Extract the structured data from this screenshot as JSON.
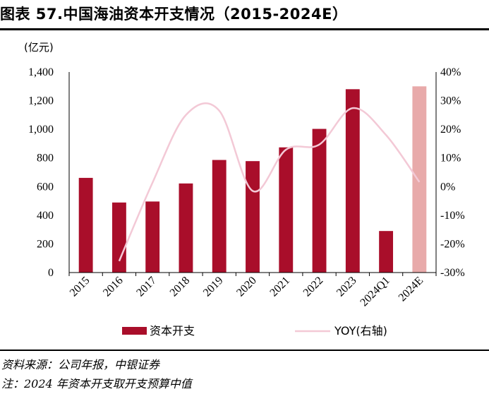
{
  "title": "图表 57.中国海油资本开支情况（2015-2024E）",
  "source_note": "资料来源：公司年报，中银证券",
  "footnote": "注：2024 年资本开支取开支预算中值",
  "colors": {
    "bar": "#a90e2a",
    "bar_forecast": "#e8aaaa",
    "line": "#f3c9d6",
    "axis": "#000000"
  },
  "chart_data": {
    "type": "bar",
    "title": "中国海油资本开支情况（2015-2024E）",
    "unit_label": "(亿元)",
    "categories": [
      "2015",
      "2016",
      "2017",
      "2018",
      "2019",
      "2020",
      "2021",
      "2022",
      "2023",
      "2024Q1",
      "2024E"
    ],
    "series": [
      {
        "name": "资本开支",
        "type": "bar",
        "axis": "left",
        "values": [
          661,
          489,
          496,
          622,
          786,
          778,
          874,
          1003,
          1280,
          290,
          1300
        ],
        "forecast_categories": [
          "2024E"
        ]
      },
      {
        "name": "YOY(右轴)",
        "type": "line",
        "axis": "right",
        "values": [
          null,
          -26,
          1.4,
          25,
          26.5,
          -1.5,
          12.9,
          14.7,
          27.4,
          18,
          1.6
        ]
      }
    ],
    "y_left": {
      "min": 0,
      "max": 1400,
      "ticks": [
        0,
        200,
        400,
        600,
        800,
        1000,
        1200,
        1400
      ],
      "tick_labels": [
        "0",
        "200",
        "400",
        "600",
        "800",
        "1,000",
        "1,200",
        "1,400"
      ]
    },
    "y_right": {
      "min": -30,
      "max": 40,
      "ticks": [
        -30,
        -20,
        -10,
        0,
        10,
        20,
        30,
        40
      ],
      "tick_labels": [
        "-30%",
        "-20%",
        "-10%",
        "0%",
        "10%",
        "20%",
        "30%",
        "40%"
      ]
    },
    "legend": {
      "placement": "bottom",
      "entries": [
        "资本开支",
        "YOY(右轴)"
      ]
    },
    "grid": false
  }
}
